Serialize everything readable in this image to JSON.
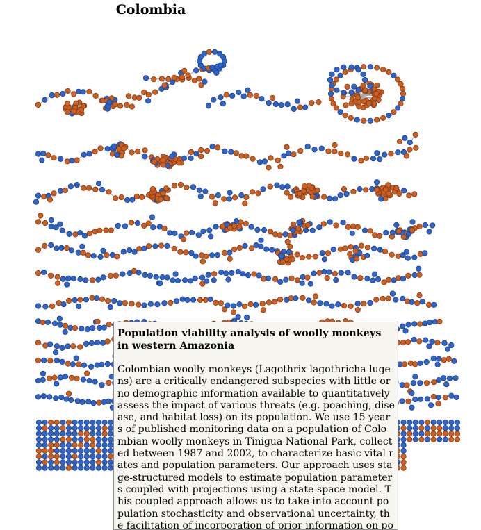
{
  "title": "Colombia",
  "colors": {
    "node_blue": "#2f64c9",
    "node_orange": "#cd5f22",
    "edge": "#a9a9a9",
    "tooltip_bg": "#f6f5ef"
  },
  "diagram": {
    "type": "network-graph",
    "node_shape": "circle",
    "node_colors": [
      "blue",
      "orange"
    ]
  },
  "tooltip": {
    "title": "Population viability analysis of woolly monkeys in western Amazonia",
    "body": "Colombian woolly monkeys (Lagothrix lagothricha lugens) are a critically endangered subspecies with little or no demographic information available to quantitatively assess the impact of various threats (e.g. poaching, disease, and habitat loss) on its population. We use 15 years of published monitoring data on a population of Colombian woolly monkeys in Tinigua National Park, collected between 1987 and 2002, to characterize basic vital rates and population parameters. Our approach uses stage-structured models to estimate population parameters coupled with projections using a state-space model. This coupled approach allows us to take into account population stochasticity and observational uncertainty, the facilitation of incorporation of prior information on populati"
  }
}
